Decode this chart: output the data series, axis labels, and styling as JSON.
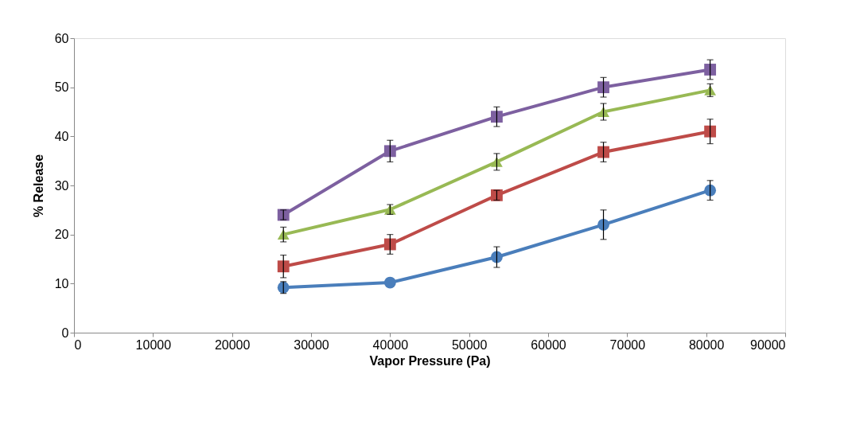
{
  "chart_data": {
    "type": "line",
    "xlabel": "Vapor Pressure (Pa)",
    "ylabel": "% Release",
    "x": [
      26500,
      40000,
      53500,
      67000,
      80500
    ],
    "xlim": [
      0,
      90000
    ],
    "xticks": [
      0,
      10000,
      20000,
      30000,
      40000,
      50000,
      60000,
      70000,
      80000,
      90000
    ],
    "ylim": [
      0,
      60
    ],
    "yticks": [
      0,
      10,
      20,
      30,
      40,
      50,
      60
    ],
    "grid": false,
    "series": [
      {
        "color": "#4a7ebb",
        "marker": "circle",
        "values": [
          9.2,
          10.2,
          15.4,
          22,
          29
        ],
        "errors": [
          1.2,
          null,
          2.1,
          3,
          2
        ]
      },
      {
        "color": "#be4b48",
        "marker": "square",
        "values": [
          13.5,
          18,
          28,
          36.8,
          41
        ],
        "errors": [
          2.3,
          2,
          1,
          2,
          2.5
        ]
      },
      {
        "color": "#98b954",
        "marker": "triangle",
        "values": [
          20,
          25.1,
          34.8,
          45,
          49.4
        ],
        "errors": [
          1.5,
          1,
          1.7,
          1.7,
          1.3
        ]
      },
      {
        "color": "#7d60a0",
        "marker": "square",
        "values": [
          24,
          37,
          44,
          50,
          53.6
        ],
        "errors": [
          1,
          2.2,
          2,
          2,
          2
        ]
      }
    ]
  }
}
